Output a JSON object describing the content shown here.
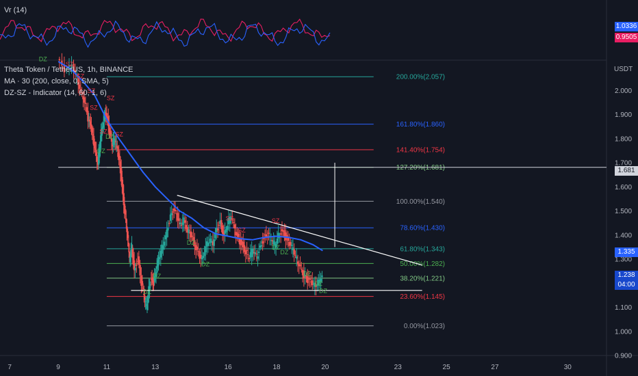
{
  "indicator_pane": {
    "name": "Vr (14)",
    "values": [
      {
        "value": "1.0336",
        "color": "#2962ff"
      },
      {
        "value": "0.9505",
        "color": "#e91e63"
      }
    ]
  },
  "legend": {
    "symbol": "Theta Token / TetherUS, 1h, BINANCE",
    "ma": "MA · 30 (200, close, 0, SMA, 5)",
    "dzsz": "DZ-SZ - Indicator (14, 60, 1, 6)"
  },
  "currency": "USDT",
  "price_badges": {
    "hline": {
      "value": "1.681",
      "bg": "#d1d4dc",
      "fg": "#131722"
    },
    "ma": {
      "value": "1.335",
      "bg": "#2962ff",
      "fg": "#ffffff"
    },
    "last": {
      "value": "1.238",
      "time": "04:00",
      "bg": "#1848cc",
      "fg": "#ffffff"
    }
  },
  "chart_data": {
    "type": "candlestick",
    "ylim": [
      0.9,
      2.12
    ],
    "xlim": [
      6.6,
      31.6
    ],
    "y_ticks": [
      "2.000",
      "1.900",
      "1.800",
      "1.700",
      "1.600",
      "1.500",
      "1.400",
      "1.300",
      "1.200",
      "1.100",
      "1.000",
      "0.900"
    ],
    "x_ticks": [
      {
        "label": "7",
        "x": 7
      },
      {
        "label": "9",
        "x": 9
      },
      {
        "label": "11",
        "x": 11
      },
      {
        "label": "13",
        "x": 13
      },
      {
        "label": "16",
        "x": 16
      },
      {
        "label": "18",
        "x": 18
      },
      {
        "label": "20",
        "x": 20
      },
      {
        "label": "23",
        "x": 23
      },
      {
        "label": "25",
        "x": 25
      },
      {
        "label": "27",
        "x": 27
      },
      {
        "label": "30",
        "x": 30
      }
    ],
    "fib_levels": [
      {
        "label": "200.00%(2.057)",
        "value": 2.057,
        "color": "#26a69a"
      },
      {
        "label": "161.80%(1.860)",
        "value": 1.86,
        "color": "#2962ff"
      },
      {
        "label": "141.40%(1.754)",
        "value": 1.754,
        "color": "#f23645"
      },
      {
        "label": "127.20%(1.681)",
        "value": 1.681,
        "color": "#81c784"
      },
      {
        "label": "100.00%(1.540)",
        "value": 1.54,
        "color": "#9598a1"
      },
      {
        "label": "78.60%(1.430)",
        "value": 1.43,
        "color": "#2962ff"
      },
      {
        "label": "61.80%(1.343)",
        "value": 1.343,
        "color": "#26a69a"
      },
      {
        "label": "50.00%(1.282)",
        "value": 1.282,
        "color": "#4caf50"
      },
      {
        "label": "38.20%(1.221)",
        "value": 1.221,
        "color": "#81c784"
      },
      {
        "label": "23.60%(1.145)",
        "value": 1.145,
        "color": "#f23645"
      },
      {
        "label": "0.00%(1.023)",
        "value": 1.023,
        "color": "#9598a1"
      }
    ],
    "ohlc_path": [
      [
        9.0,
        2.13
      ],
      [
        9.3,
        2.08
      ],
      [
        9.6,
        2.1
      ],
      [
        9.8,
        2.05
      ],
      [
        9.95,
        2.0
      ],
      [
        10.1,
        1.96
      ],
      [
        10.25,
        1.88
      ],
      [
        10.35,
        1.85
      ],
      [
        10.45,
        1.8
      ],
      [
        10.55,
        1.75
      ],
      [
        10.65,
        1.7
      ],
      [
        10.75,
        1.8
      ],
      [
        10.85,
        1.85
      ],
      [
        10.95,
        1.9
      ],
      [
        11.05,
        1.88
      ],
      [
        11.15,
        1.82
      ],
      [
        11.25,
        1.78
      ],
      [
        11.35,
        1.8
      ],
      [
        11.45,
        1.75
      ],
      [
        11.55,
        1.7
      ],
      [
        11.65,
        1.6
      ],
      [
        11.75,
        1.5
      ],
      [
        11.85,
        1.42
      ],
      [
        11.95,
        1.3
      ],
      [
        12.05,
        1.35
      ],
      [
        12.15,
        1.25
      ],
      [
        12.3,
        1.3
      ],
      [
        12.45,
        1.2
      ],
      [
        12.55,
        1.15
      ],
      [
        12.65,
        1.1
      ],
      [
        12.75,
        1.18
      ],
      [
        12.85,
        1.22
      ],
      [
        12.95,
        1.2
      ],
      [
        13.05,
        1.25
      ],
      [
        13.15,
        1.3
      ],
      [
        13.3,
        1.35
      ],
      [
        13.45,
        1.4
      ],
      [
        13.6,
        1.46
      ],
      [
        13.75,
        1.5
      ],
      [
        13.9,
        1.48
      ],
      [
        14.05,
        1.44
      ],
      [
        14.2,
        1.47
      ],
      [
        14.35,
        1.42
      ],
      [
        14.5,
        1.4
      ],
      [
        14.65,
        1.35
      ],
      [
        14.8,
        1.32
      ],
      [
        14.95,
        1.3
      ],
      [
        15.1,
        1.36
      ],
      [
        15.25,
        1.38
      ],
      [
        15.4,
        1.36
      ],
      [
        15.55,
        1.42
      ],
      [
        15.7,
        1.45
      ],
      [
        15.85,
        1.4
      ],
      [
        16.0,
        1.45
      ],
      [
        16.15,
        1.48
      ],
      [
        16.3,
        1.42
      ],
      [
        16.45,
        1.38
      ],
      [
        16.6,
        1.36
      ],
      [
        16.75,
        1.33
      ],
      [
        16.9,
        1.31
      ],
      [
        17.05,
        1.34
      ],
      [
        17.2,
        1.31
      ],
      [
        17.35,
        1.35
      ],
      [
        17.5,
        1.39
      ],
      [
        17.65,
        1.4
      ],
      [
        17.8,
        1.38
      ],
      [
        17.95,
        1.36
      ],
      [
        18.1,
        1.4
      ],
      [
        18.25,
        1.42
      ],
      [
        18.4,
        1.39
      ],
      [
        18.55,
        1.36
      ],
      [
        18.7,
        1.34
      ],
      [
        18.85,
        1.3
      ],
      [
        19.0,
        1.27
      ],
      [
        19.15,
        1.23
      ],
      [
        19.3,
        1.21
      ],
      [
        19.45,
        1.2
      ],
      [
        19.6,
        1.19
      ],
      [
        19.75,
        1.21
      ],
      [
        19.9,
        1.24
      ]
    ],
    "ma_series": [
      [
        9.0,
        2.12
      ],
      [
        9.5,
        2.09
      ],
      [
        10.0,
        2.04
      ],
      [
        10.5,
        1.98
      ],
      [
        11.0,
        1.88
      ],
      [
        11.5,
        1.8
      ],
      [
        12.0,
        1.73
      ],
      [
        12.5,
        1.66
      ],
      [
        13.0,
        1.6
      ],
      [
        13.5,
        1.55
      ],
      [
        14.0,
        1.5
      ],
      [
        14.5,
        1.47
      ],
      [
        15.0,
        1.43
      ],
      [
        15.5,
        1.405
      ],
      [
        16.0,
        1.395
      ],
      [
        16.5,
        1.385
      ],
      [
        17.0,
        1.38
      ],
      [
        17.5,
        1.39
      ],
      [
        18.0,
        1.395
      ],
      [
        18.5,
        1.39
      ],
      [
        19.0,
        1.38
      ],
      [
        19.5,
        1.36
      ],
      [
        19.9,
        1.335
      ]
    ],
    "trendline": {
      "from": [
        13.9,
        1.565
      ],
      "to": [
        24.0,
        1.275
      ],
      "color": "#ffffff"
    },
    "support_line": {
      "from": [
        12.0,
        1.17
      ],
      "to": [
        24.0,
        1.17
      ],
      "color": "#ffffff"
    },
    "measure_line": {
      "x": 20.4,
      "from": 1.35,
      "to": 1.7,
      "color": "#ffffff"
    },
    "zone_labels": [
      {
        "text": "DZ",
        "x": 8.2,
        "y": 2.122,
        "color": "#4caf50"
      },
      {
        "text": "SZ",
        "x": 9.3,
        "y": 2.1,
        "color": "#f23645"
      },
      {
        "text": "SZ",
        "x": 9.75,
        "y": 2.05,
        "color": "#f23645"
      },
      {
        "text": "SZ",
        "x": 10.2,
        "y": 1.99,
        "color": "#f23645"
      },
      {
        "text": "SZ",
        "x": 10.3,
        "y": 1.92,
        "color": "#f23645"
      },
      {
        "text": "SZ",
        "x": 11.0,
        "y": 1.96,
        "color": "#f23645"
      },
      {
        "text": "SZ",
        "x": 10.7,
        "y": 1.82,
        "color": "#f23645"
      },
      {
        "text": "DZ",
        "x": 10.95,
        "y": 1.8,
        "color": "#4caf50"
      },
      {
        "text": "SZ",
        "x": 11.35,
        "y": 1.81,
        "color": "#f23645"
      },
      {
        "text": "DZ",
        "x": 10.6,
        "y": 1.74,
        "color": "#4caf50"
      },
      {
        "text": "DZ",
        "x": 12.5,
        "y": 1.155,
        "color": "#4caf50"
      },
      {
        "text": "DZ",
        "x": 12.9,
        "y": 1.22,
        "color": "#4caf50"
      },
      {
        "text": "DZ",
        "x": 14.3,
        "y": 1.36,
        "color": "#4caf50"
      },
      {
        "text": "DZ",
        "x": 14.9,
        "y": 1.27,
        "color": "#4caf50"
      },
      {
        "text": "SZ",
        "x": 15.9,
        "y": 1.46,
        "color": "#f23645"
      },
      {
        "text": "SZ",
        "x": 16.4,
        "y": 1.41,
        "color": "#f23645"
      },
      {
        "text": "DZ",
        "x": 17.8,
        "y": 1.34,
        "color": "#4caf50"
      },
      {
        "text": "SZ",
        "x": 17.8,
        "y": 1.45,
        "color": "#f23645"
      },
      {
        "text": "DZ",
        "x": 18.15,
        "y": 1.32,
        "color": "#4caf50"
      },
      {
        "text": "DZ",
        "x": 19.1,
        "y": 1.23,
        "color": "#4caf50"
      },
      {
        "text": "DZ",
        "x": 19.55,
        "y": 1.19,
        "color": "#4caf50"
      },
      {
        "text": "DZ",
        "x": 19.75,
        "y": 1.16,
        "color": "#4caf50"
      }
    ]
  }
}
